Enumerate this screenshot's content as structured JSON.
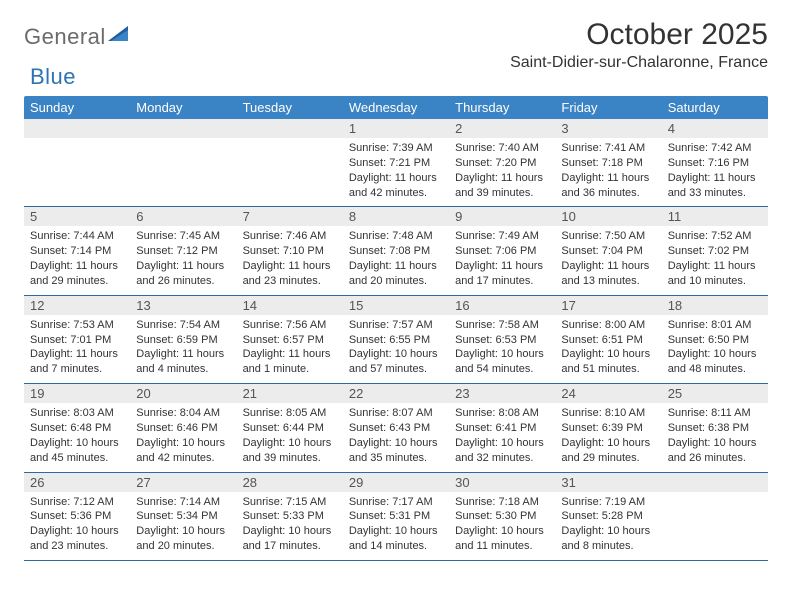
{
  "brand": {
    "word1": "General",
    "word2": "Blue"
  },
  "title": "October 2025",
  "location": "Saint-Didier-sur-Chalaronne, France",
  "colors": {
    "header_bg": "#3a83c4",
    "header_text": "#ffffff",
    "daynum_bg": "#ececec",
    "row_border": "#2d6aa3",
    "logo_grey": "#6b6b6b",
    "logo_blue": "#2d74b6"
  },
  "weekdays": [
    "Sunday",
    "Monday",
    "Tuesday",
    "Wednesday",
    "Thursday",
    "Friday",
    "Saturday"
  ],
  "weeks": [
    [
      {
        "n": "",
        "sunrise": "",
        "sunset": "",
        "daylight1": "",
        "daylight2": ""
      },
      {
        "n": "",
        "sunrise": "",
        "sunset": "",
        "daylight1": "",
        "daylight2": ""
      },
      {
        "n": "",
        "sunrise": "",
        "sunset": "",
        "daylight1": "",
        "daylight2": ""
      },
      {
        "n": "1",
        "sunrise": "Sunrise: 7:39 AM",
        "sunset": "Sunset: 7:21 PM",
        "daylight1": "Daylight: 11 hours",
        "daylight2": "and 42 minutes."
      },
      {
        "n": "2",
        "sunrise": "Sunrise: 7:40 AM",
        "sunset": "Sunset: 7:20 PM",
        "daylight1": "Daylight: 11 hours",
        "daylight2": "and 39 minutes."
      },
      {
        "n": "3",
        "sunrise": "Sunrise: 7:41 AM",
        "sunset": "Sunset: 7:18 PM",
        "daylight1": "Daylight: 11 hours",
        "daylight2": "and 36 minutes."
      },
      {
        "n": "4",
        "sunrise": "Sunrise: 7:42 AM",
        "sunset": "Sunset: 7:16 PM",
        "daylight1": "Daylight: 11 hours",
        "daylight2": "and 33 minutes."
      }
    ],
    [
      {
        "n": "5",
        "sunrise": "Sunrise: 7:44 AM",
        "sunset": "Sunset: 7:14 PM",
        "daylight1": "Daylight: 11 hours",
        "daylight2": "and 29 minutes."
      },
      {
        "n": "6",
        "sunrise": "Sunrise: 7:45 AM",
        "sunset": "Sunset: 7:12 PM",
        "daylight1": "Daylight: 11 hours",
        "daylight2": "and 26 minutes."
      },
      {
        "n": "7",
        "sunrise": "Sunrise: 7:46 AM",
        "sunset": "Sunset: 7:10 PM",
        "daylight1": "Daylight: 11 hours",
        "daylight2": "and 23 minutes."
      },
      {
        "n": "8",
        "sunrise": "Sunrise: 7:48 AM",
        "sunset": "Sunset: 7:08 PM",
        "daylight1": "Daylight: 11 hours",
        "daylight2": "and 20 minutes."
      },
      {
        "n": "9",
        "sunrise": "Sunrise: 7:49 AM",
        "sunset": "Sunset: 7:06 PM",
        "daylight1": "Daylight: 11 hours",
        "daylight2": "and 17 minutes."
      },
      {
        "n": "10",
        "sunrise": "Sunrise: 7:50 AM",
        "sunset": "Sunset: 7:04 PM",
        "daylight1": "Daylight: 11 hours",
        "daylight2": "and 13 minutes."
      },
      {
        "n": "11",
        "sunrise": "Sunrise: 7:52 AM",
        "sunset": "Sunset: 7:02 PM",
        "daylight1": "Daylight: 11 hours",
        "daylight2": "and 10 minutes."
      }
    ],
    [
      {
        "n": "12",
        "sunrise": "Sunrise: 7:53 AM",
        "sunset": "Sunset: 7:01 PM",
        "daylight1": "Daylight: 11 hours",
        "daylight2": "and 7 minutes."
      },
      {
        "n": "13",
        "sunrise": "Sunrise: 7:54 AM",
        "sunset": "Sunset: 6:59 PM",
        "daylight1": "Daylight: 11 hours",
        "daylight2": "and 4 minutes."
      },
      {
        "n": "14",
        "sunrise": "Sunrise: 7:56 AM",
        "sunset": "Sunset: 6:57 PM",
        "daylight1": "Daylight: 11 hours",
        "daylight2": "and 1 minute."
      },
      {
        "n": "15",
        "sunrise": "Sunrise: 7:57 AM",
        "sunset": "Sunset: 6:55 PM",
        "daylight1": "Daylight: 10 hours",
        "daylight2": "and 57 minutes."
      },
      {
        "n": "16",
        "sunrise": "Sunrise: 7:58 AM",
        "sunset": "Sunset: 6:53 PM",
        "daylight1": "Daylight: 10 hours",
        "daylight2": "and 54 minutes."
      },
      {
        "n": "17",
        "sunrise": "Sunrise: 8:00 AM",
        "sunset": "Sunset: 6:51 PM",
        "daylight1": "Daylight: 10 hours",
        "daylight2": "and 51 minutes."
      },
      {
        "n": "18",
        "sunrise": "Sunrise: 8:01 AM",
        "sunset": "Sunset: 6:50 PM",
        "daylight1": "Daylight: 10 hours",
        "daylight2": "and 48 minutes."
      }
    ],
    [
      {
        "n": "19",
        "sunrise": "Sunrise: 8:03 AM",
        "sunset": "Sunset: 6:48 PM",
        "daylight1": "Daylight: 10 hours",
        "daylight2": "and 45 minutes."
      },
      {
        "n": "20",
        "sunrise": "Sunrise: 8:04 AM",
        "sunset": "Sunset: 6:46 PM",
        "daylight1": "Daylight: 10 hours",
        "daylight2": "and 42 minutes."
      },
      {
        "n": "21",
        "sunrise": "Sunrise: 8:05 AM",
        "sunset": "Sunset: 6:44 PM",
        "daylight1": "Daylight: 10 hours",
        "daylight2": "and 39 minutes."
      },
      {
        "n": "22",
        "sunrise": "Sunrise: 8:07 AM",
        "sunset": "Sunset: 6:43 PM",
        "daylight1": "Daylight: 10 hours",
        "daylight2": "and 35 minutes."
      },
      {
        "n": "23",
        "sunrise": "Sunrise: 8:08 AM",
        "sunset": "Sunset: 6:41 PM",
        "daylight1": "Daylight: 10 hours",
        "daylight2": "and 32 minutes."
      },
      {
        "n": "24",
        "sunrise": "Sunrise: 8:10 AM",
        "sunset": "Sunset: 6:39 PM",
        "daylight1": "Daylight: 10 hours",
        "daylight2": "and 29 minutes."
      },
      {
        "n": "25",
        "sunrise": "Sunrise: 8:11 AM",
        "sunset": "Sunset: 6:38 PM",
        "daylight1": "Daylight: 10 hours",
        "daylight2": "and 26 minutes."
      }
    ],
    [
      {
        "n": "26",
        "sunrise": "Sunrise: 7:12 AM",
        "sunset": "Sunset: 5:36 PM",
        "daylight1": "Daylight: 10 hours",
        "daylight2": "and 23 minutes."
      },
      {
        "n": "27",
        "sunrise": "Sunrise: 7:14 AM",
        "sunset": "Sunset: 5:34 PM",
        "daylight1": "Daylight: 10 hours",
        "daylight2": "and 20 minutes."
      },
      {
        "n": "28",
        "sunrise": "Sunrise: 7:15 AM",
        "sunset": "Sunset: 5:33 PM",
        "daylight1": "Daylight: 10 hours",
        "daylight2": "and 17 minutes."
      },
      {
        "n": "29",
        "sunrise": "Sunrise: 7:17 AM",
        "sunset": "Sunset: 5:31 PM",
        "daylight1": "Daylight: 10 hours",
        "daylight2": "and 14 minutes."
      },
      {
        "n": "30",
        "sunrise": "Sunrise: 7:18 AM",
        "sunset": "Sunset: 5:30 PM",
        "daylight1": "Daylight: 10 hours",
        "daylight2": "and 11 minutes."
      },
      {
        "n": "31",
        "sunrise": "Sunrise: 7:19 AM",
        "sunset": "Sunset: 5:28 PM",
        "daylight1": "Daylight: 10 hours",
        "daylight2": "and 8 minutes."
      },
      {
        "n": "",
        "sunrise": "",
        "sunset": "",
        "daylight1": "",
        "daylight2": ""
      }
    ]
  ]
}
